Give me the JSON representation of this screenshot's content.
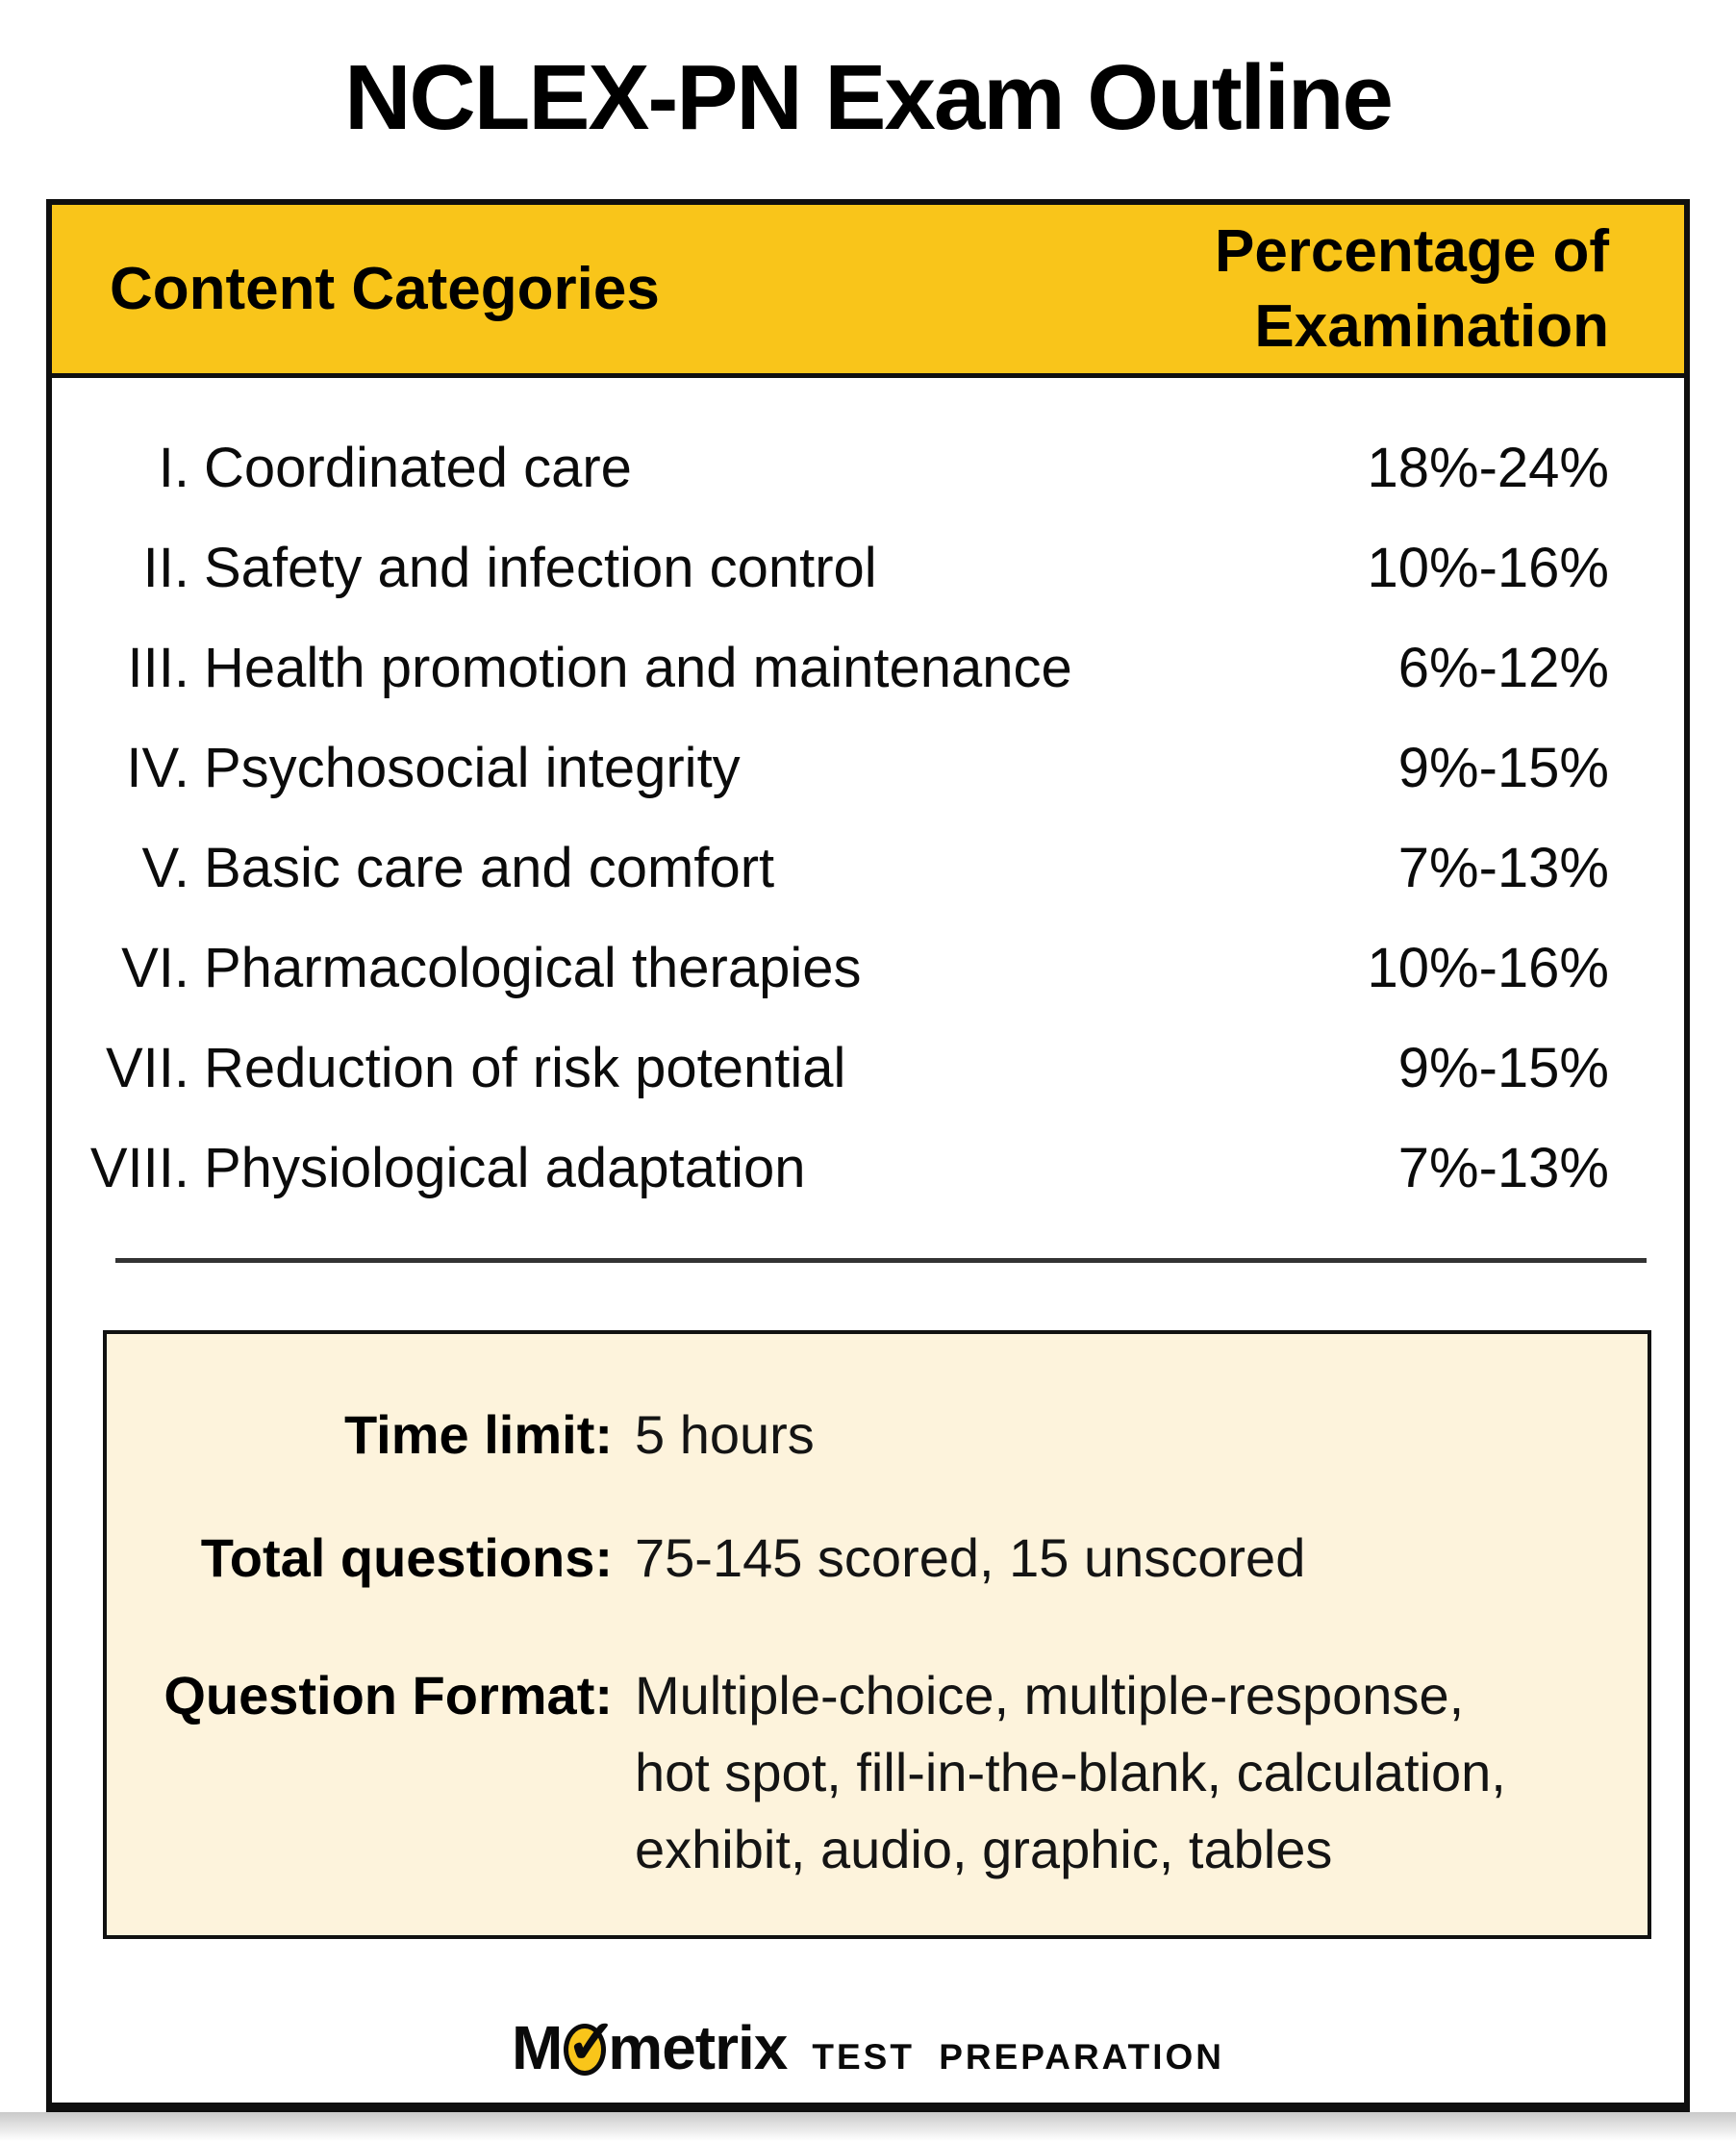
{
  "title": "NCLEX-PN Exam Outline",
  "table": {
    "header": {
      "categories": "Content Categories",
      "percentage_line1": "Percentage of",
      "percentage_line2": "Examination"
    },
    "rows": [
      {
        "numeral": "I.",
        "category": "Coordinated care",
        "range": "18%-24%"
      },
      {
        "numeral": "II.",
        "category": "Safety and infection control",
        "range": "10%-16%"
      },
      {
        "numeral": "III.",
        "category": "Health promotion and maintenance",
        "range": "6%-12%"
      },
      {
        "numeral": "IV.",
        "category": "Psychosocial integrity",
        "range": "9%-15%"
      },
      {
        "numeral": "V.",
        "category": "Basic care and comfort",
        "range": "7%-13%"
      },
      {
        "numeral": "VI.",
        "category": "Pharmacological therapies",
        "range": "10%-16%"
      },
      {
        "numeral": "VII.",
        "category": "Reduction of risk potential",
        "range": "9%-15%"
      },
      {
        "numeral": "VIII.",
        "category": "Physiological adaptation",
        "range": "7%-13%"
      }
    ]
  },
  "info": {
    "time_limit_label": "Time limit:",
    "time_limit_value": "5 hours",
    "total_questions_label": "Total questions:",
    "total_questions_value": "75-145 scored, 15 unscored",
    "question_format_label": "Question Format:",
    "question_format_lines": [
      "Multiple-choice, multiple-response,",
      "hot spot, fill-in-the-blank, calculation,",
      "exhibit, audio, graphic, tables"
    ]
  },
  "footer": {
    "brand_prefix": "M",
    "brand_suffix": "metrix",
    "check_icon": "✓",
    "tagline": "TEST PREPARATION"
  },
  "colors": {
    "header_yellow": "#F9C51A",
    "info_cream": "#FDF3DC",
    "border_black": "#0F0F0F",
    "text_black": "#0B0B0B",
    "divider_gray": "#333333"
  }
}
